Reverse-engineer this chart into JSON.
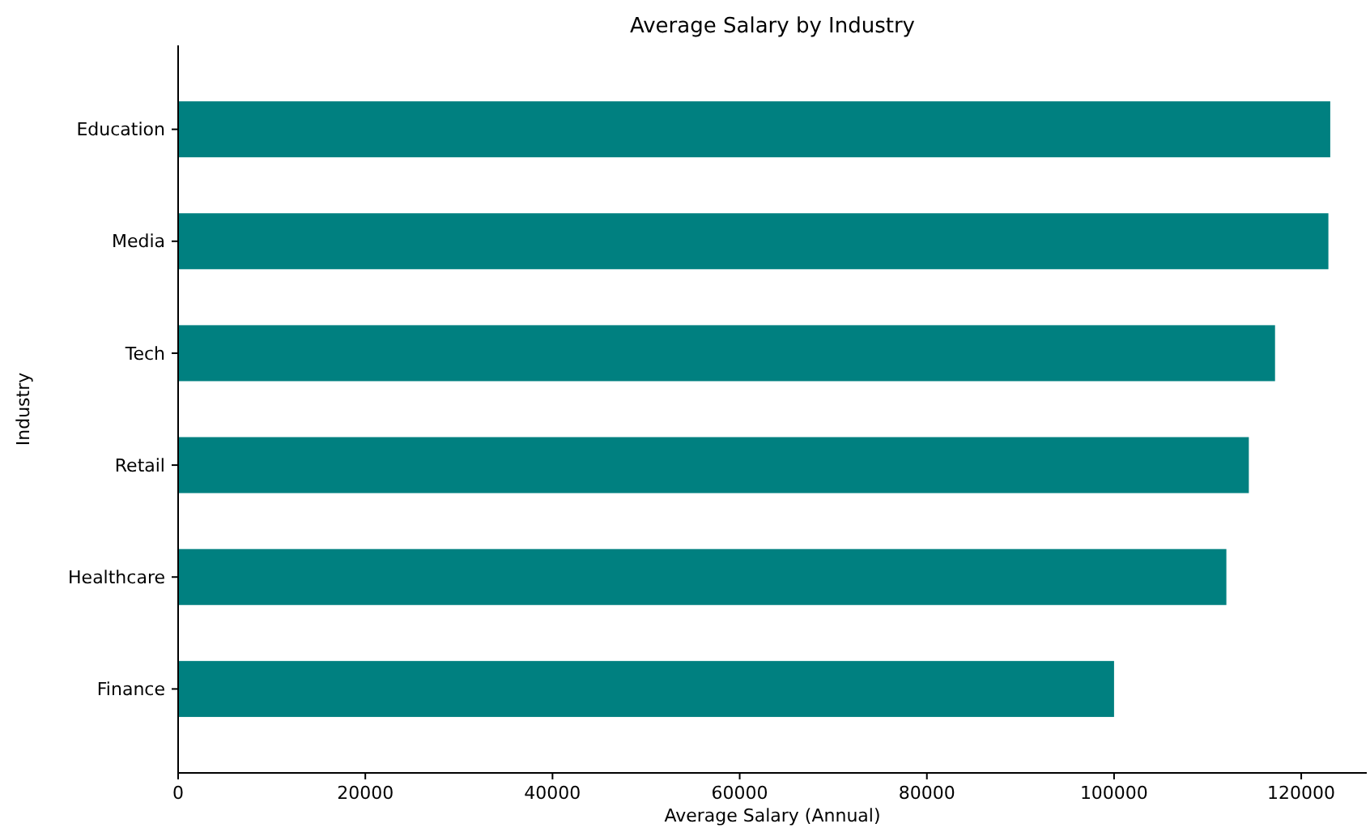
{
  "chart_data": {
    "type": "bar",
    "orientation": "horizontal",
    "title": "Average Salary by Industry",
    "xlabel": "Average Salary (Annual)",
    "ylabel": "Industry",
    "categories": [
      "Education",
      "Media",
      "Tech",
      "Retail",
      "Healthcare",
      "Finance"
    ],
    "values": [
      123100,
      122900,
      117200,
      114400,
      112000,
      100000
    ],
    "color": "#008080",
    "xlim": [
      0,
      127000
    ],
    "xticks": [
      0,
      20000,
      40000,
      60000,
      80000,
      100000,
      120000
    ],
    "grid": false
  }
}
